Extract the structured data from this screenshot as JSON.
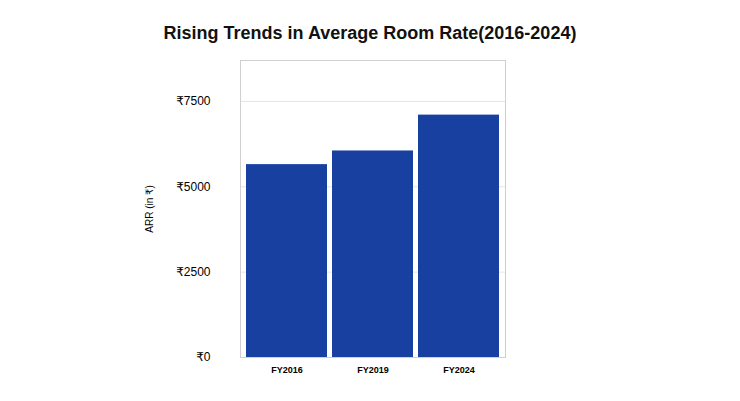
{
  "chart_data": {
    "type": "bar",
    "title": "Rising Trends in Average Room Rate(2016-2024)",
    "y_label": "ARR (in ₹)",
    "categories": [
      "FY2016",
      "FY2019",
      "FY2024"
    ],
    "values": [
      5650,
      6050,
      7100
    ],
    "color": "#1740a0",
    "ylim": [
      0,
      8700
    ],
    "yticks": [
      {
        "value": 0,
        "label": "₹0"
      },
      {
        "value": 2500,
        "label": "₹2500"
      },
      {
        "value": 5000,
        "label": "₹5000"
      },
      {
        "value": 7500,
        "label": "₹7500"
      }
    ],
    "grid": true
  }
}
